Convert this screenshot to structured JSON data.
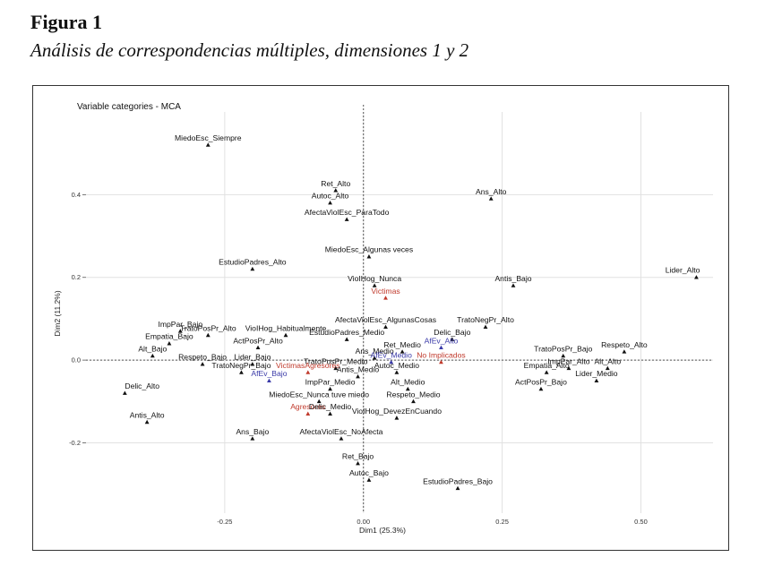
{
  "figure": {
    "label": "Figura 1",
    "caption": "Análisis de correspondencias múltiples, dimensiones 1 y 2"
  },
  "colors": {
    "category": "#111111",
    "blue": "#3a3aa8",
    "red": "#c0392b"
  },
  "chart_data": {
    "type": "scatter",
    "title": "Variable categories - MCA",
    "xlabel": "Dim1 (25.3%)",
    "ylabel": "Dim2 (11.2%)",
    "xlim": [
      -0.5,
      0.63
    ],
    "ylim": [
      -0.37,
      0.6
    ],
    "xticks": [
      {
        "v": -0.25,
        "t": "-0.25"
      },
      {
        "v": 0,
        "t": "0.00"
      },
      {
        "v": 0.25,
        "t": "0.25"
      },
      {
        "v": 0.5,
        "t": "0.50"
      }
    ],
    "yticks": [
      {
        "v": -0.2,
        "t": "-0.2"
      },
      {
        "v": 0,
        "t": "0.0"
      },
      {
        "v": 0.2,
        "t": "0.2"
      },
      {
        "v": 0.4,
        "t": "0.4"
      }
    ],
    "grid": true,
    "points": [
      {
        "label": "MiedoEsc_Siempre",
        "x": -0.28,
        "y": 0.52,
        "c": "k"
      },
      {
        "label": "Ret_Alto",
        "x": -0.05,
        "y": 0.41,
        "c": "k"
      },
      {
        "label": "Autoc_Alto",
        "x": -0.06,
        "y": 0.38,
        "c": "k"
      },
      {
        "label": "AfectaViolEsc_ParaTodo",
        "x": -0.03,
        "y": 0.34,
        "c": "k"
      },
      {
        "label": "Ans_Alto",
        "x": 0.23,
        "y": 0.39,
        "c": "k"
      },
      {
        "label": "MiedoEsc_Algunas veces",
        "x": 0.01,
        "y": 0.25,
        "c": "k"
      },
      {
        "label": "EstudioPadres_Alto",
        "x": -0.2,
        "y": 0.22,
        "c": "k"
      },
      {
        "label": "Lider_Alto",
        "x": 0.6,
        "y": 0.2,
        "c": "k"
      },
      {
        "label": "VioIHog_Nunca",
        "x": 0.02,
        "y": 0.18,
        "c": "k"
      },
      {
        "label": "Victimas",
        "x": 0.04,
        "y": 0.15,
        "c": "r"
      },
      {
        "label": "Antis_Bajo",
        "x": 0.27,
        "y": 0.18,
        "c": "k"
      },
      {
        "label": "ImpPar_Bajo",
        "x": -0.33,
        "y": 0.07,
        "c": "k"
      },
      {
        "label": "VioIHog_Habitualmente",
        "x": -0.14,
        "y": 0.06,
        "c": "k"
      },
      {
        "label": "AfectaViolEsc_AlgunasCosas",
        "x": 0.04,
        "y": 0.08,
        "c": "k"
      },
      {
        "label": "TratoNegPr_Alto",
        "x": 0.22,
        "y": 0.08,
        "c": "k"
      },
      {
        "label": "Empatia_Bajo",
        "x": -0.35,
        "y": 0.04,
        "c": "k"
      },
      {
        "label": "TratoPosPr_Alto",
        "x": -0.28,
        "y": 0.06,
        "c": "k"
      },
      {
        "label": "EstudioPadres_Medio",
        "x": -0.03,
        "y": 0.05,
        "c": "k"
      },
      {
        "label": "Delic_Bajo",
        "x": 0.16,
        "y": 0.05,
        "c": "k"
      },
      {
        "label": "Ret_Medio",
        "x": 0.07,
        "y": 0.02,
        "c": "k"
      },
      {
        "label": "AfEv_Alto",
        "x": 0.14,
        "y": 0.03,
        "c": "b"
      },
      {
        "label": "Alt_Bajo",
        "x": -0.38,
        "y": 0.01,
        "c": "k"
      },
      {
        "label": "ActPosPr_Alto",
        "x": -0.19,
        "y": 0.03,
        "c": "k"
      },
      {
        "label": "TratoPosPr_Bajo",
        "x": 0.36,
        "y": 0.01,
        "c": "k"
      },
      {
        "label": "Respeto_Alto",
        "x": 0.47,
        "y": 0.02,
        "c": "k"
      },
      {
        "label": "Ans_Medio",
        "x": 0.02,
        "y": 0.005,
        "c": "k"
      },
      {
        "label": "AfEv_Medio",
        "x": 0.05,
        "y": -0.005,
        "c": "b"
      },
      {
        "label": "No Implicados",
        "x": 0.14,
        "y": -0.005,
        "c": "r"
      },
      {
        "label": "Respeto_Bajo",
        "x": -0.29,
        "y": -0.01,
        "c": "k"
      },
      {
        "label": "Lider_Bajo",
        "x": -0.2,
        "y": -0.01,
        "c": "k"
      },
      {
        "label": "TratoPosPr_Medio",
        "x": -0.05,
        "y": -0.02,
        "c": "k"
      },
      {
        "label": "ImpPar_Alto",
        "x": 0.37,
        "y": -0.02,
        "c": "k"
      },
      {
        "label": "Alt_Alto",
        "x": 0.44,
        "y": -0.02,
        "c": "k"
      },
      {
        "label": "TratoNegPr_Bajo",
        "x": -0.22,
        "y": -0.03,
        "c": "k"
      },
      {
        "label": "VictimasAgresores",
        "x": -0.1,
        "y": -0.03,
        "c": "r"
      },
      {
        "label": "AfEv_Bajo",
        "x": -0.17,
        "y": -0.05,
        "c": "b"
      },
      {
        "label": "Antis_Medio",
        "x": -0.01,
        "y": -0.04,
        "c": "k"
      },
      {
        "label": "Autoc_Medio",
        "x": 0.06,
        "y": -0.03,
        "c": "k"
      },
      {
        "label": "Empatia_Alto",
        "x": 0.33,
        "y": -0.03,
        "c": "k"
      },
      {
        "label": "Lider_Medio",
        "x": 0.42,
        "y": -0.05,
        "c": "k"
      },
      {
        "label": "ImpPar_Medio",
        "x": -0.06,
        "y": -0.07,
        "c": "k"
      },
      {
        "label": "Alt_Medio",
        "x": 0.08,
        "y": -0.07,
        "c": "k"
      },
      {
        "label": "ActPosPr_Bajo",
        "x": 0.32,
        "y": -0.07,
        "c": "k"
      },
      {
        "label": "Delic_Alto",
        "x": -0.43,
        "y": -0.08,
        "c": "k"
      },
      {
        "label": "MiedoEsc_Nunca tuve miedo",
        "x": -0.08,
        "y": -0.1,
        "c": "k"
      },
      {
        "label": "Respeto_Medio",
        "x": 0.09,
        "y": -0.1,
        "c": "k"
      },
      {
        "label": "Antis_Alto",
        "x": -0.39,
        "y": -0.15,
        "c": "k"
      },
      {
        "label": "Agresores",
        "x": -0.1,
        "y": -0.13,
        "c": "r"
      },
      {
        "label": "Delic_Medio",
        "x": -0.06,
        "y": -0.13,
        "c": "k"
      },
      {
        "label": "VioIHog_DevezEnCuando",
        "x": 0.06,
        "y": -0.14,
        "c": "k"
      },
      {
        "label": "Ans_Bajo",
        "x": -0.2,
        "y": -0.19,
        "c": "k"
      },
      {
        "label": "AfectaViolEsc_NoAfecta",
        "x": -0.04,
        "y": -0.19,
        "c": "k"
      },
      {
        "label": "Ret_Bajo",
        "x": -0.01,
        "y": -0.25,
        "c": "k"
      },
      {
        "label": "Autoc_Bajo",
        "x": 0.01,
        "y": -0.29,
        "c": "k"
      },
      {
        "label": "EstudioPadres_Bajo",
        "x": 0.17,
        "y": -0.31,
        "c": "k"
      }
    ]
  }
}
